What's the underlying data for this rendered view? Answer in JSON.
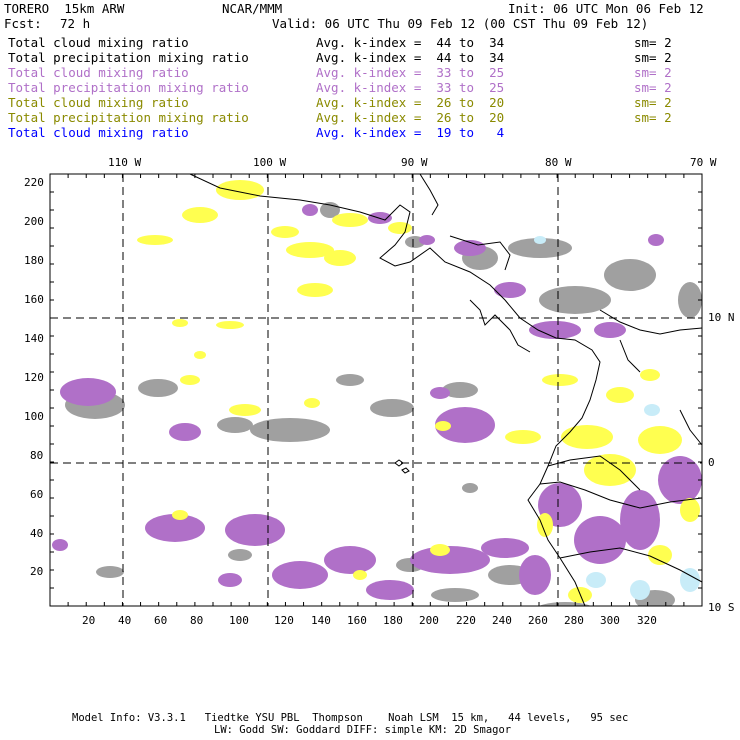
{
  "header": {
    "model": "TORERO  15km ARW",
    "org": "NCAR/MMM",
    "init": "Init: 06 UTC Mon 06 Feb 12",
    "fcst_label": "Fcst:",
    "fcst_value": "72 h",
    "valid": "Valid: 06 UTC Thu 09 Feb 12 (00 CST Thu 09 Feb 12)"
  },
  "fields": [
    {
      "name": "Total cloud mixing ratio",
      "kindex": "Avg. k-index =  44 to  34",
      "sm": "sm= 2",
      "color": "#000000"
    },
    {
      "name": "Total precipitation mixing ratio",
      "kindex": "Avg. k-index =  44 to  34",
      "sm": "sm= 2",
      "color": "#000000"
    },
    {
      "name": "Total cloud mixing ratio",
      "kindex": "Avg. k-index =  33 to  25",
      "sm": "sm= 2",
      "color": "#b070c8"
    },
    {
      "name": "Total precipitation mixing ratio",
      "kindex": "Avg. k-index =  33 to  25",
      "sm": "sm= 2",
      "color": "#b070c8"
    },
    {
      "name": "Total cloud mixing ratio",
      "kindex": "Avg. k-index =  26 to  20",
      "sm": "sm= 2",
      "color": "#8a8a00"
    },
    {
      "name": "Total precipitation mixing ratio",
      "kindex": "Avg. k-index =  26 to  20",
      "sm": "sm= 2",
      "color": "#8a8a00"
    },
    {
      "name": "Total cloud mixing ratio",
      "kindex": "Avg. k-index =  19 to   4",
      "sm": "",
      "color": "#0000ff"
    }
  ],
  "map": {
    "lon_labels": [
      "110 W",
      "100 W",
      "90 W",
      "80 W",
      "70 W"
    ],
    "lat_labels": [
      "10 N",
      "0",
      "10 S"
    ],
    "x_ticks": [
      "20",
      "40",
      "60",
      "80",
      "100",
      "120",
      "140",
      "160",
      "180",
      "200",
      "220",
      "240",
      "260",
      "280",
      "300",
      "320"
    ],
    "y_ticks": [
      "20",
      "40",
      "60",
      "80",
      "100",
      "120",
      "140",
      "160",
      "180",
      "200",
      "220"
    ],
    "colors": {
      "gray": "#a0a0a0",
      "purple": "#b070c8",
      "yellow": "#ffff50",
      "lightblue": "#c8ecf8"
    }
  },
  "footer": {
    "line1": "Model Info: V3.3.1   Tiedtke YSU PBL  Thompson    Noah LSM  15 km,   44 levels,   95 sec",
    "line2": "LW: Godd SW: Goddard DIFF: simple KM: 2D Smagor"
  }
}
